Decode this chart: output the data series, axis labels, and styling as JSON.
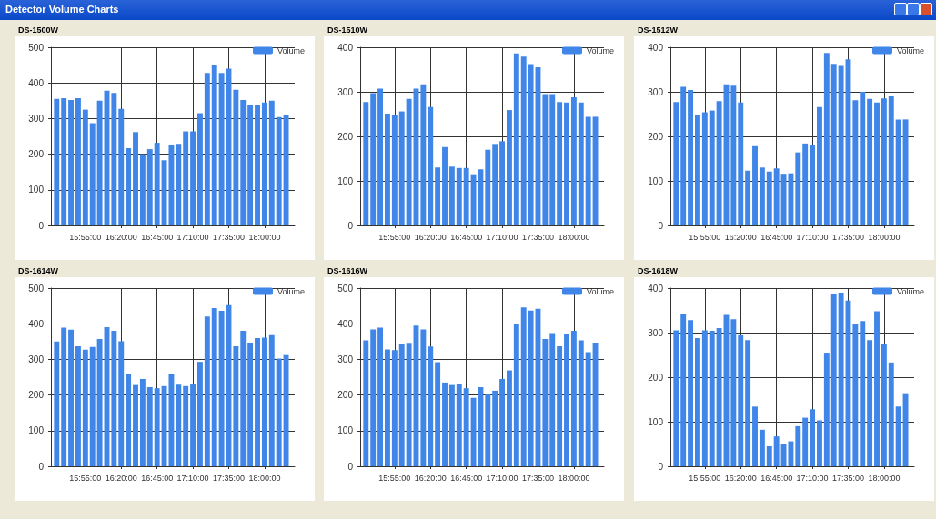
{
  "chart_data": [
    {
      "type": "bar",
      "title": "DS-1500W",
      "legend": "top right",
      "grid": true,
      "xlim": [
        15.5167,
        18.35
      ],
      "ylim": [
        0,
        500
      ],
      "yticks": [
        0,
        100,
        200,
        300,
        400,
        500
      ],
      "xticks": [
        {
          "value": 15.9167,
          "label": "15:55:00"
        },
        {
          "value": 16.3333,
          "label": "16:20:00"
        },
        {
          "value": 16.75,
          "label": "16:45:00"
        },
        {
          "value": 17.1667,
          "label": "17:10:00"
        },
        {
          "value": 17.5833,
          "label": "17:35:00"
        },
        {
          "value": 18,
          "label": "18:00:00"
        }
      ],
      "x": [
        15.5833,
        15.6667,
        15.75,
        15.8333,
        15.9167,
        16,
        16.0833,
        16.1667,
        16.25,
        16.3333,
        16.4167,
        16.5,
        16.5833,
        16.6667,
        16.75,
        16.8333,
        16.9167,
        17,
        17.0833,
        17.1667,
        17.25,
        17.3333,
        17.4167,
        17.5,
        17.5833,
        17.6667,
        17.75,
        17.8333,
        17.9167,
        18,
        18.0833,
        18.1667,
        18.25
      ],
      "series": [
        {
          "name": "Volume",
          "color": "#3f86e8",
          "values": [
            355,
            357,
            352,
            357,
            325,
            287,
            350,
            378,
            372,
            327,
            217,
            262,
            200,
            214,
            232,
            183,
            227,
            229,
            264,
            264,
            315,
            428,
            450,
            428,
            440,
            381,
            352,
            337,
            338,
            345,
            350,
            304,
            311
          ]
        }
      ]
    },
    {
      "type": "bar",
      "title": "DS-1510W",
      "legend": "top right",
      "grid": true,
      "xlim": [
        15.5167,
        18.35
      ],
      "ylim": [
        0,
        400
      ],
      "yticks": [
        0,
        100,
        200,
        300,
        400
      ],
      "xticks": [
        {
          "value": 15.9167,
          "label": "15:55:00"
        },
        {
          "value": 16.3333,
          "label": "16:20:00"
        },
        {
          "value": 16.75,
          "label": "16:45:00"
        },
        {
          "value": 17.1667,
          "label": "17:10:00"
        },
        {
          "value": 17.5833,
          "label": "17:35:00"
        },
        {
          "value": 18,
          "label": "18:00:00"
        }
      ],
      "x": [
        15.5833,
        15.6667,
        15.75,
        15.8333,
        15.9167,
        16,
        16.0833,
        16.1667,
        16.25,
        16.3333,
        16.4167,
        16.5,
        16.5833,
        16.6667,
        16.75,
        16.8333,
        16.9167,
        17,
        17.0833,
        17.1667,
        17.25,
        17.3333,
        17.4167,
        17.5,
        17.5833,
        17.6667,
        17.75,
        17.8333,
        17.9167,
        18,
        18.0833,
        18.1667,
        18.25
      ],
      "series": [
        {
          "name": "Volume",
          "color": "#3f86e8",
          "values": [
            277,
            297,
            307,
            251,
            249,
            256,
            284,
            307,
            317,
            266,
            130,
            176,
            132,
            129,
            129,
            115,
            126,
            170,
            183,
            189,
            259,
            386,
            379,
            362,
            355,
            295,
            295,
            277,
            276,
            288,
            276,
            244,
            244
          ]
        }
      ]
    },
    {
      "type": "bar",
      "title": "DS-1512W",
      "legend": "top right",
      "grid": true,
      "xlim": [
        15.5167,
        18.35
      ],
      "ylim": [
        0,
        400
      ],
      "yticks": [
        0,
        100,
        200,
        300,
        400
      ],
      "xticks": [
        {
          "value": 15.9167,
          "label": "15:55:00"
        },
        {
          "value": 16.3333,
          "label": "16:20:00"
        },
        {
          "value": 16.75,
          "label": "16:45:00"
        },
        {
          "value": 17.1667,
          "label": "17:10:00"
        },
        {
          "value": 17.5833,
          "label": "17:35:00"
        },
        {
          "value": 18,
          "label": "18:00:00"
        }
      ],
      "x": [
        15.5833,
        15.6667,
        15.75,
        15.8333,
        15.9167,
        16,
        16.0833,
        16.1667,
        16.25,
        16.3333,
        16.4167,
        16.5,
        16.5833,
        16.6667,
        16.75,
        16.8333,
        16.9167,
        17,
        17.0833,
        17.1667,
        17.25,
        17.3333,
        17.4167,
        17.5,
        17.5833,
        17.6667,
        17.75,
        17.8333,
        17.9167,
        18,
        18.0833,
        18.1667,
        18.25
      ],
      "series": [
        {
          "name": "Volume",
          "color": "#3f86e8",
          "values": [
            277,
            311,
            304,
            249,
            254,
            258,
            279,
            317,
            314,
            276,
            123,
            178,
            130,
            121,
            128,
            116,
            117,
            164,
            184,
            180,
            266,
            387,
            363,
            358,
            373,
            281,
            300,
            284,
            276,
            285,
            290,
            238,
            238
          ]
        }
      ]
    },
    {
      "type": "bar",
      "title": "DS-1614W",
      "legend": "top right",
      "grid": true,
      "xlim": [
        15.5167,
        18.35
      ],
      "ylim": [
        0,
        500
      ],
      "yticks": [
        0,
        100,
        200,
        300,
        400,
        500
      ],
      "xticks": [
        {
          "value": 15.9167,
          "label": "15:55:00"
        },
        {
          "value": 16.3333,
          "label": "16:20:00"
        },
        {
          "value": 16.75,
          "label": "16:45:00"
        },
        {
          "value": 17.1667,
          "label": "17:10:00"
        },
        {
          "value": 17.5833,
          "label": "17:35:00"
        },
        {
          "value": 18,
          "label": "18:00:00"
        }
      ],
      "x": [
        15.5833,
        15.6667,
        15.75,
        15.8333,
        15.9167,
        16,
        16.0833,
        16.1667,
        16.25,
        16.3333,
        16.4167,
        16.5,
        16.5833,
        16.6667,
        16.75,
        16.8333,
        16.9167,
        17,
        17.0833,
        17.1667,
        17.25,
        17.3333,
        17.4167,
        17.5,
        17.5833,
        17.6667,
        17.75,
        17.8333,
        17.9167,
        18,
        18.0833,
        18.1667,
        18.25
      ],
      "series": [
        {
          "name": "Volume",
          "color": "#3f86e8",
          "values": [
            350,
            389,
            383,
            337,
            327,
            335,
            357,
            390,
            380,
            351,
            259,
            228,
            245,
            222,
            219,
            225,
            259,
            229,
            225,
            230,
            293,
            420,
            444,
            436,
            452,
            337,
            380,
            347,
            360,
            361,
            368,
            302,
            312
          ]
        }
      ]
    },
    {
      "type": "bar",
      "title": "DS-1616W",
      "legend": "top right",
      "grid": true,
      "xlim": [
        15.5167,
        18.35
      ],
      "ylim": [
        0,
        500
      ],
      "yticks": [
        0,
        100,
        200,
        300,
        400,
        500
      ],
      "xticks": [
        {
          "value": 15.9167,
          "label": "15:55:00"
        },
        {
          "value": 16.3333,
          "label": "16:20:00"
        },
        {
          "value": 16.75,
          "label": "16:45:00"
        },
        {
          "value": 17.1667,
          "label": "17:10:00"
        },
        {
          "value": 17.5833,
          "label": "17:35:00"
        },
        {
          "value": 18,
          "label": "18:00:00"
        }
      ],
      "x": [
        15.5833,
        15.6667,
        15.75,
        15.8333,
        15.9167,
        16,
        16.0833,
        16.1667,
        16.25,
        16.3333,
        16.4167,
        16.5,
        16.5833,
        16.6667,
        16.75,
        16.8333,
        16.9167,
        17,
        17.0833,
        17.1667,
        17.25,
        17.3333,
        17.4167,
        17.5,
        17.5833,
        17.6667,
        17.75,
        17.8333,
        17.9167,
        18,
        18.0833,
        18.1667,
        18.25
      ],
      "series": [
        {
          "name": "Volume",
          "color": "#3f86e8",
          "values": [
            353,
            384,
            389,
            328,
            326,
            342,
            346,
            395,
            384,
            336,
            292,
            235,
            228,
            232,
            219,
            192,
            222,
            204,
            212,
            245,
            269,
            400,
            446,
            437,
            442,
            357,
            374,
            337,
            370,
            380,
            353,
            320,
            347
          ]
        }
      ]
    },
    {
      "type": "bar",
      "title": "DS-1618W",
      "legend": "top right",
      "grid": true,
      "xlim": [
        15.5167,
        18.35
      ],
      "ylim": [
        0,
        400
      ],
      "yticks": [
        0,
        100,
        200,
        300,
        400
      ],
      "xticks": [
        {
          "value": 15.9167,
          "label": "15:55:00"
        },
        {
          "value": 16.3333,
          "label": "16:20:00"
        },
        {
          "value": 16.75,
          "label": "16:45:00"
        },
        {
          "value": 17.1667,
          "label": "17:10:00"
        },
        {
          "value": 17.5833,
          "label": "17:35:00"
        },
        {
          "value": 18,
          "label": "18:00:00"
        }
      ],
      "x": [
        15.5833,
        15.6667,
        15.75,
        15.8333,
        15.9167,
        16,
        16.0833,
        16.1667,
        16.25,
        16.3333,
        16.4167,
        16.5,
        16.5833,
        16.6667,
        16.75,
        16.8333,
        16.9167,
        17,
        17.0833,
        17.1667,
        17.25,
        17.3333,
        17.4167,
        17.5,
        17.5833,
        17.6667,
        17.75,
        17.8333,
        17.9167,
        18,
        18.0833,
        18.1667,
        18.25
      ],
      "series": [
        {
          "name": "Volume",
          "color": "#3f86e8",
          "values": [
            305,
            342,
            328,
            288,
            305,
            304,
            310,
            340,
            330,
            294,
            283,
            134,
            82,
            45,
            67,
            50,
            56,
            90,
            109,
            128,
            103,
            255,
            387,
            390,
            372,
            320,
            326,
            283,
            348,
            275,
            233,
            134,
            164
          ]
        }
      ]
    },
    {
      "type": "other",
      "title": "Detector Volume Charts"
    }
  ]
}
